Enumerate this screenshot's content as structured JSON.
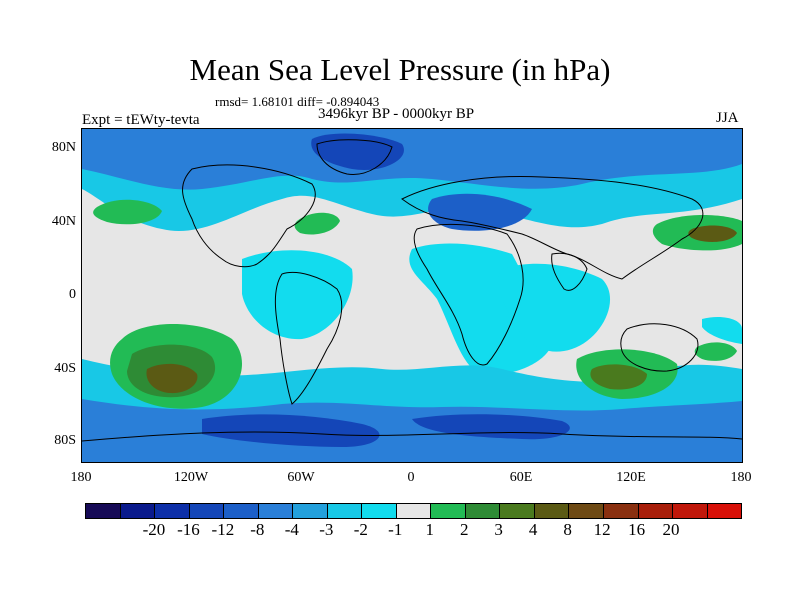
{
  "title": "Mean Sea Level Pressure (in hPa)",
  "stats": "rmsd= 1.68101 diff= -0.894043",
  "period": "3496kyr BP - 0000kyr BP",
  "experiment": "Expt = tEWty-tevta",
  "season": "JJA",
  "lat_labels": [
    "80N",
    "40N",
    "0",
    "40S",
    "80S"
  ],
  "lon_labels": [
    "180",
    "120W",
    "60W",
    "0",
    "60E",
    "120E",
    "180"
  ],
  "colorbar": {
    "colors": [
      "#160a56",
      "#0a1a8c",
      "#0d2fa8",
      "#1446b8",
      "#1c5fc8",
      "#2a7fd8",
      "#23a0dc",
      "#18c8e6",
      "#12dcee",
      "#e6e6e6",
      "#22bb55",
      "#2e8b35",
      "#4a7a1e",
      "#5b5a14",
      "#6e4a14",
      "#8a3010",
      "#a81e0a",
      "#c0170a",
      "#d81008"
    ],
    "labels": [
      "-20",
      "-16",
      "-12",
      "-8",
      "-4",
      "-3",
      "-2",
      "-1",
      "1",
      "2",
      "3",
      "4",
      "8",
      "12",
      "16",
      "20"
    ]
  }
}
